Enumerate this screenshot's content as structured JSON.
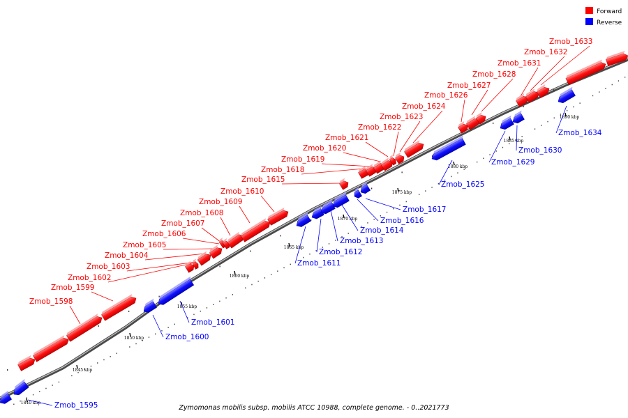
{
  "legend": {
    "forward_label": "Forward",
    "reverse_label": "Reverse",
    "forward_color": "#ff0000",
    "reverse_color": "#0000ff"
  },
  "caption": "Zymomonas mobilis subsp. mobilis ATCC 10988, complete genome. - 0..2021773",
  "ticks": [
    "1840 kbp",
    "1845 kbp",
    "1850 kbp",
    "1855 kbp",
    "1860 kbp",
    "1865 kbp",
    "1870 kbp",
    "1875 kbp",
    "1880 kbp",
    "1885 kbp",
    "1890 kbp"
  ],
  "genes": [
    {
      "name": "Zmob_1595",
      "strand": "reverse"
    },
    {
      "name": "Zmob_1598",
      "strand": "forward"
    },
    {
      "name": "Zmob_1599",
      "strand": "forward"
    },
    {
      "name": "Zmob_1600",
      "strand": "reverse"
    },
    {
      "name": "Zmob_1601",
      "strand": "reverse"
    },
    {
      "name": "Zmob_1602",
      "strand": "forward"
    },
    {
      "name": "Zmob_1603",
      "strand": "forward"
    },
    {
      "name": "Zmob_1604",
      "strand": "forward"
    },
    {
      "name": "Zmob_1605",
      "strand": "forward"
    },
    {
      "name": "Zmob_1606",
      "strand": "forward"
    },
    {
      "name": "Zmob_1607",
      "strand": "forward"
    },
    {
      "name": "Zmob_1608",
      "strand": "forward"
    },
    {
      "name": "Zmob_1609",
      "strand": "forward"
    },
    {
      "name": "Zmob_1610",
      "strand": "forward"
    },
    {
      "name": "Zmob_1611",
      "strand": "reverse"
    },
    {
      "name": "Zmob_1612",
      "strand": "reverse"
    },
    {
      "name": "Zmob_1613",
      "strand": "reverse"
    },
    {
      "name": "Zmob_1614",
      "strand": "reverse"
    },
    {
      "name": "Zmob_1615",
      "strand": "forward"
    },
    {
      "name": "Zmob_1616",
      "strand": "reverse"
    },
    {
      "name": "Zmob_1617",
      "strand": "reverse"
    },
    {
      "name": "Zmob_1618",
      "strand": "forward"
    },
    {
      "name": "Zmob_1619",
      "strand": "forward"
    },
    {
      "name": "Zmob_1620",
      "strand": "forward"
    },
    {
      "name": "Zmob_1621",
      "strand": "forward"
    },
    {
      "name": "Zmob_1622",
      "strand": "forward"
    },
    {
      "name": "Zmob_1623",
      "strand": "forward"
    },
    {
      "name": "Zmob_1624",
      "strand": "forward"
    },
    {
      "name": "Zmob_1625",
      "strand": "reverse"
    },
    {
      "name": "Zmob_1626",
      "strand": "forward"
    },
    {
      "name": "Zmob_1627",
      "strand": "forward"
    },
    {
      "name": "Zmob_1628",
      "strand": "forward"
    },
    {
      "name": "Zmob_1629",
      "strand": "reverse"
    },
    {
      "name": "Zmob_1630",
      "strand": "reverse"
    },
    {
      "name": "Zmob_1631",
      "strand": "forward"
    },
    {
      "name": "Zmob_1632",
      "strand": "forward"
    },
    {
      "name": "Zmob_1633",
      "strand": "forward"
    },
    {
      "name": "Zmob_1634",
      "strand": "reverse"
    }
  ]
}
